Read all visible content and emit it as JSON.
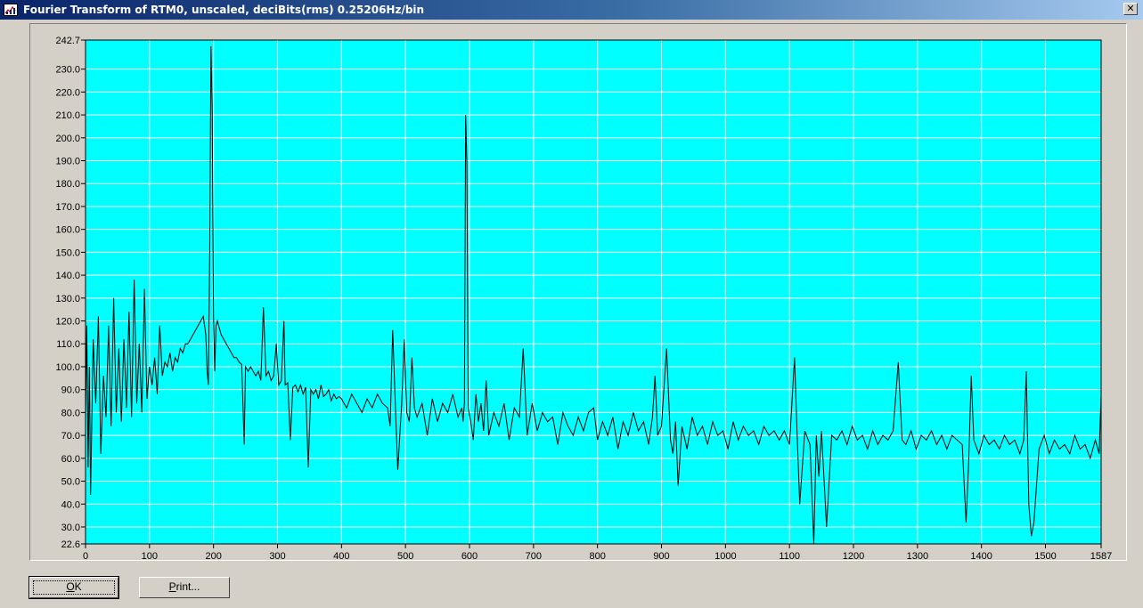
{
  "window": {
    "title": "Fourier Transform of RTM0, unscaled, deciBits(rms)  0.25206Hz/bin",
    "close_glyph": "✕",
    "app_icon": "chart-app-icon",
    "close_icon": "close-x-icon"
  },
  "buttons": {
    "ok_label": "OK",
    "ok_mnemonic": "O",
    "print_label": "Print...",
    "print_mnemonic": "P"
  },
  "colors": {
    "plot_background": "#00ffff",
    "grid": "#ffffff",
    "trace": "#000000"
  },
  "chart_data": {
    "type": "line",
    "title": "",
    "xlabel": "",
    "ylabel": "",
    "xlim": [
      0,
      1587
    ],
    "ylim": [
      22.6,
      242.7
    ],
    "x_ticks": [
      0,
      100,
      200,
      300,
      400,
      500,
      600,
      700,
      800,
      900,
      1000,
      1100,
      1200,
      1300,
      1400,
      1500,
      1587
    ],
    "x_tick_labels": [
      "0",
      "100",
      "200",
      "300",
      "400",
      "500",
      "600",
      "700",
      "800",
      "900",
      "1000",
      "1100",
      "1200",
      "1300",
      "1400",
      "1500",
      "1587"
    ],
    "y_ticks": [
      22.6,
      30.0,
      40.0,
      50.0,
      60.0,
      70.0,
      80.0,
      90.0,
      100.0,
      110.0,
      120.0,
      130.0,
      140.0,
      150.0,
      160.0,
      170.0,
      180.0,
      190.0,
      200.0,
      210.0,
      220.0,
      230.0,
      242.7
    ],
    "y_tick_labels": [
      "22.6",
      "30.0",
      "40.0",
      "50.0",
      "60.0",
      "70.0",
      "80.0",
      "90.0",
      "100.0",
      "110.0",
      "120.0",
      "130.0",
      "140.0",
      "150.0",
      "160.0",
      "170.0",
      "180.0",
      "190.0",
      "200.0",
      "210.0",
      "220.0",
      "230.0",
      "242.7"
    ],
    "grid": true,
    "series": [
      {
        "x": [
          0,
          2,
          4,
          6,
          8,
          12,
          16,
          20,
          24,
          28,
          32,
          36,
          40,
          44,
          48,
          52,
          56,
          60,
          64,
          68,
          72,
          76,
          80,
          84,
          88,
          92,
          96,
          100,
          104,
          108,
          112,
          116,
          120,
          124,
          128,
          132,
          136,
          140,
          144,
          148,
          152,
          156,
          160,
          164,
          168,
          172,
          176,
          180,
          184,
          188,
          190,
          192,
          194,
          196,
          198,
          200,
          202,
          204,
          206,
          208,
          212,
          216,
          220,
          224,
          228,
          232,
          236,
          240,
          244,
          248,
          250,
          254,
          258,
          262,
          266,
          270,
          274,
          278,
          282,
          286,
          290,
          294,
          298,
          302,
          306,
          310,
          312,
          316,
          320,
          324,
          328,
          332,
          336,
          340,
          344,
          348,
          352,
          356,
          360,
          364,
          368,
          372,
          376,
          380,
          384,
          388,
          392,
          396,
          400,
          408,
          416,
          424,
          432,
          440,
          448,
          456,
          464,
          472,
          476,
          480,
          484,
          488,
          494,
          498,
          502,
          506,
          510,
          514,
          518,
          526,
          534,
          542,
          550,
          558,
          566,
          574,
          582,
          588,
          590,
          592,
          594,
          596,
          598,
          602,
          606,
          610,
          614,
          618,
          622,
          626,
          630,
          638,
          646,
          654,
          662,
          670,
          678,
          684,
          690,
          698,
          706,
          714,
          722,
          730,
          738,
          746,
          754,
          762,
          770,
          778,
          786,
          794,
          800,
          808,
          816,
          824,
          832,
          840,
          848,
          856,
          864,
          872,
          880,
          886,
          890,
          894,
          900,
          908,
          914,
          918,
          922,
          926,
          932,
          940,
          948,
          956,
          964,
          972,
          980,
          988,
          996,
          1004,
          1012,
          1020,
          1028,
          1036,
          1044,
          1052,
          1060,
          1068,
          1076,
          1084,
          1092,
          1100,
          1108,
          1112,
          1116,
          1124,
          1132,
          1138,
          1142,
          1146,
          1150,
          1158,
          1166,
          1174,
          1182,
          1190,
          1198,
          1206,
          1214,
          1222,
          1230,
          1238,
          1246,
          1254,
          1262,
          1270,
          1276,
          1282,
          1290,
          1298,
          1306,
          1314,
          1322,
          1330,
          1338,
          1346,
          1354,
          1362,
          1370,
          1376,
          1380,
          1384,
          1388,
          1396,
          1404,
          1412,
          1420,
          1428,
          1436,
          1444,
          1452,
          1460,
          1466,
          1470,
          1474,
          1478,
          1482,
          1490,
          1498,
          1506,
          1514,
          1522,
          1530,
          1538,
          1546,
          1554,
          1562,
          1570,
          1578,
          1584,
          1587
        ],
        "y": [
          78,
          118,
          56,
          100,
          44,
          112,
          84,
          122,
          62,
          96,
          78,
          118,
          74,
          130,
          80,
          108,
          76,
          112,
          82,
          124,
          78,
          138,
          84,
          110,
          80,
          134,
          86,
          100,
          92,
          104,
          88,
          118,
          96,
          102,
          100,
          106,
          98,
          104,
          102,
          108,
          106,
          110,
          110,
          112,
          114,
          116,
          118,
          120,
          122,
          114,
          98,
          92,
          150,
          240,
          212,
          122,
          98,
          118,
          120,
          118,
          114,
          112,
          110,
          108,
          106,
          104,
          104,
          102,
          101,
          66,
          100,
          98,
          100,
          98,
          96,
          98,
          94,
          126,
          96,
          98,
          94,
          96,
          110,
          92,
          94,
          120,
          92,
          93,
          68,
          91,
          92,
          89,
          92,
          88,
          91,
          56,
          90,
          88,
          90,
          86,
          92,
          87,
          88,
          90,
          85,
          88,
          86,
          87,
          86,
          82,
          88,
          84,
          80,
          86,
          82,
          88,
          84,
          82,
          74,
          116,
          84,
          55,
          84,
          112,
          80,
          76,
          104,
          82,
          78,
          84,
          70,
          86,
          76,
          84,
          80,
          88,
          78,
          82,
          76,
          84,
          210,
          188,
          82,
          76,
          68,
          88,
          76,
          84,
          72,
          94,
          70,
          80,
          74,
          84,
          68,
          82,
          78,
          108,
          70,
          84,
          72,
          80,
          76,
          78,
          66,
          80,
          74,
          70,
          78,
          72,
          80,
          82,
          68,
          76,
          70,
          78,
          64,
          76,
          70,
          80,
          72,
          76,
          66,
          78,
          96,
          70,
          74,
          108,
          68,
          62,
          76,
          48,
          74,
          64,
          78,
          70,
          74,
          66,
          76,
          70,
          72,
          64,
          76,
          68,
          74,
          70,
          72,
          66,
          74,
          70,
          72,
          68,
          72,
          66,
          104,
          70,
          40,
          72,
          66,
          22.6,
          70,
          52,
          72,
          30,
          70,
          68,
          72,
          66,
          74,
          68,
          70,
          64,
          72,
          66,
          70,
          68,
          72,
          102,
          68,
          66,
          72,
          64,
          70,
          68,
          72,
          66,
          70,
          64,
          70,
          68,
          66,
          32,
          58,
          96,
          68,
          62,
          70,
          66,
          68,
          64,
          70,
          66,
          68,
          62,
          68,
          98,
          40,
          26,
          32,
          64,
          70,
          62,
          68,
          64,
          66,
          62,
          70,
          64,
          66,
          60,
          68,
          62,
          88
        ]
      }
    ]
  }
}
